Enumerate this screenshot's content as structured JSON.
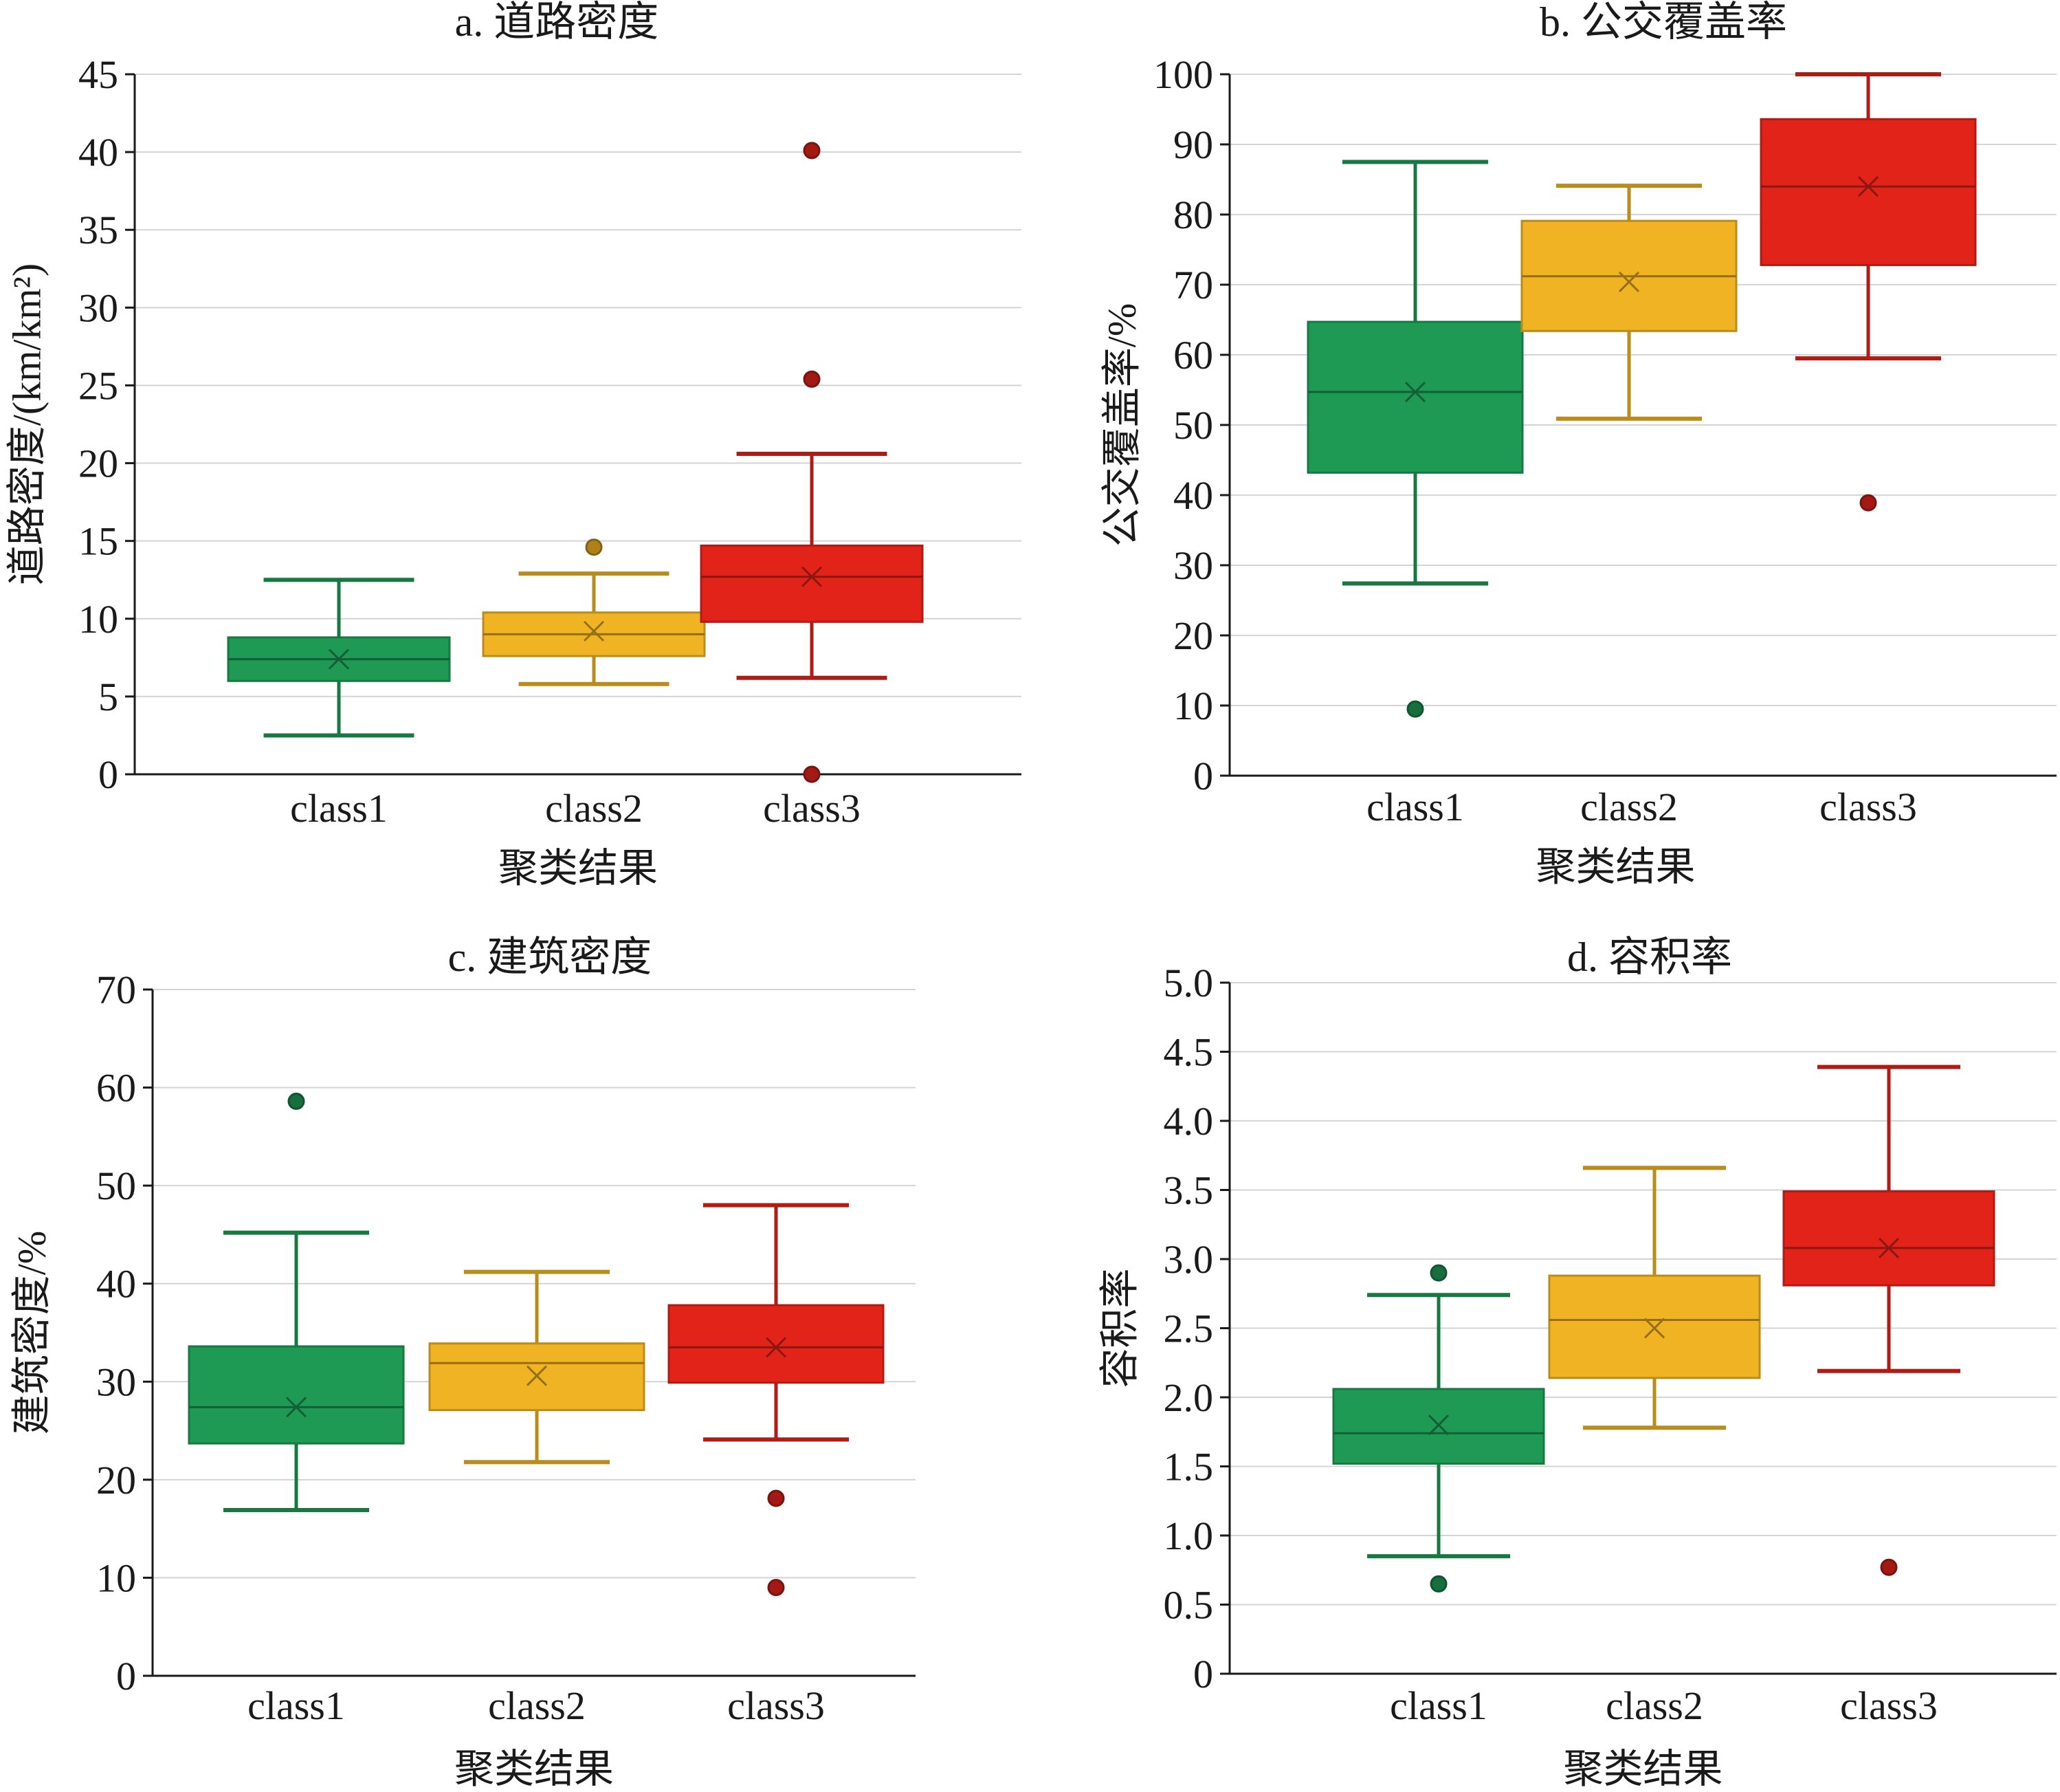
{
  "chart_data": [
    {
      "type": "box",
      "title": "a. 道路密度",
      "xlabel": "聚类结果",
      "ylabel": "道路密度/(km/km²)",
      "categories": [
        "class1",
        "class2",
        "class3"
      ],
      "ylim": [
        0,
        45
      ],
      "yticks": [
        "0",
        "5",
        "10",
        "15",
        "20",
        "25",
        "30",
        "35",
        "40",
        "45"
      ],
      "ytick_values": [
        0,
        5,
        10,
        15,
        20,
        25,
        30,
        35,
        40,
        45
      ],
      "grid": true,
      "series": [
        {
          "category": "class1",
          "color": "#1f9a55",
          "min": 2.5,
          "q1": 6,
          "median": 7.4,
          "mean": 7.4,
          "q3": 8.8,
          "max": 12.5,
          "outliers": []
        },
        {
          "category": "class2",
          "color": "#efb323",
          "min": 5.8,
          "q1": 7.6,
          "median": 9,
          "mean": 9.2,
          "q3": 10.4,
          "max": 12.9,
          "outliers": [
            14.6
          ]
        },
        {
          "category": "class3",
          "color": "#e2231a",
          "min": 6.2,
          "q1": 9.8,
          "median": 12.7,
          "mean": 12.7,
          "q3": 14.7,
          "max": 20.6,
          "outliers": [
            40.1,
            25.4,
            0
          ]
        }
      ]
    },
    {
      "type": "box",
      "title": "b. 公交覆盖率",
      "xlabel": "聚类结果",
      "ylabel": "公交覆盖率/%",
      "categories": [
        "class1",
        "class2",
        "class3"
      ],
      "ylim": [
        0,
        100
      ],
      "yticks": [
        "0",
        "10",
        "20",
        "30",
        "40",
        "50",
        "60",
        "70",
        "80",
        "90",
        "100"
      ],
      "ytick_values": [
        0,
        10,
        20,
        30,
        40,
        50,
        60,
        70,
        80,
        90,
        100
      ],
      "grid": true,
      "series": [
        {
          "category": "class1",
          "color": "#1f9a55",
          "min": 27.4,
          "q1": 43.2,
          "median": 54.7,
          "mean": 54.7,
          "q3": 64.7,
          "max": 87.5,
          "outliers": [
            9.5
          ]
        },
        {
          "category": "class2",
          "color": "#efb323",
          "min": 50.9,
          "q1": 63.4,
          "median": 71.2,
          "mean": 70.4,
          "q3": 79.1,
          "max": 84.1,
          "outliers": []
        },
        {
          "category": "class3",
          "color": "#e2231a",
          "min": 59.5,
          "q1": 72.8,
          "median": 84,
          "mean": 84,
          "q3": 93.6,
          "max": 100,
          "outliers": [
            38.9
          ]
        }
      ]
    },
    {
      "type": "box",
      "title": "c. 建筑密度",
      "xlabel": "聚类结果",
      "ylabel": "建筑密度/%",
      "categories": [
        "class1",
        "class2",
        "class3"
      ],
      "ylim": [
        0,
        70
      ],
      "yticks": [
        "0",
        "10",
        "20",
        "30",
        "40",
        "50",
        "60",
        "70"
      ],
      "ytick_values": [
        0,
        10,
        20,
        30,
        40,
        50,
        60,
        70
      ],
      "grid": true,
      "series": [
        {
          "category": "class1",
          "color": "#1f9a55",
          "min": 16.9,
          "q1": 23.7,
          "median": 27.4,
          "mean": 27.4,
          "q3": 33.6,
          "max": 45.2,
          "outliers": [
            58.6
          ]
        },
        {
          "category": "class2",
          "color": "#efb323",
          "min": 21.8,
          "q1": 27.1,
          "median": 31.9,
          "mean": 30.6,
          "q3": 33.9,
          "max": 41.2,
          "outliers": []
        },
        {
          "category": "class3",
          "color": "#e2231a",
          "min": 24.1,
          "q1": 29.9,
          "median": 33.5,
          "mean": 33.5,
          "q3": 37.8,
          "max": 48,
          "outliers": [
            18.1,
            9
          ]
        }
      ]
    },
    {
      "type": "box",
      "title": "d. 容积率",
      "xlabel": "聚类结果",
      "ylabel": "容积率",
      "categories": [
        "class1",
        "class2",
        "class3"
      ],
      "ylim": [
        0,
        5
      ],
      "yticks": [
        "0",
        "0.5",
        "1.0",
        "1.5",
        "2.0",
        "2.5",
        "3.0",
        "3.5",
        "4.0",
        "4.5",
        "5.0"
      ],
      "ytick_values": [
        0,
        0.5,
        1,
        1.5,
        2,
        2.5,
        3,
        3.5,
        4,
        4.5,
        5
      ],
      "grid": true,
      "series": [
        {
          "category": "class1",
          "color": "#1f9a55",
          "min": 0.85,
          "q1": 1.52,
          "median": 1.74,
          "mean": 1.8,
          "q3": 2.06,
          "max": 2.74,
          "outliers": [
            2.9,
            0.65
          ]
        },
        {
          "category": "class2",
          "color": "#efb323",
          "min": 1.78,
          "q1": 2.14,
          "median": 2.56,
          "mean": 2.5,
          "q3": 2.88,
          "max": 3.66,
          "outliers": []
        },
        {
          "category": "class3",
          "color": "#e2231a",
          "min": 2.19,
          "q1": 2.81,
          "median": 3.08,
          "mean": 3.08,
          "q3": 3.49,
          "max": 4.39,
          "outliers": [
            0.77
          ]
        }
      ]
    }
  ]
}
